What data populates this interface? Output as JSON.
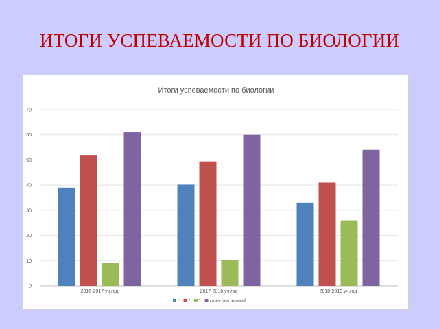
{
  "slide": {
    "title": "ИТОГИ УСПЕВАЕМОСТИ ПО БИОЛОГИИ"
  },
  "chart_data": {
    "type": "bar",
    "title": "Итоги успеваемости по биологии",
    "categories": [
      "2016-2017 уч.год",
      "2017-2018 уч.год",
      "2018-2019 уч.год"
    ],
    "series": [
      {
        "name": "\"",
        "color": "#4f81bd",
        "values": [
          39,
          40.2,
          33
        ]
      },
      {
        "name": "\"",
        "color": "#c0504d",
        "values": [
          52,
          49.4,
          41
        ]
      },
      {
        "name": "\"",
        "color": "#9bbb59",
        "values": [
          9,
          10.3,
          26
        ]
      },
      {
        "name": "качество знаний",
        "color": "#8064a2",
        "values": [
          61,
          60,
          54
        ]
      }
    ],
    "ylim": [
      0,
      70
    ],
    "yticks": [
      0,
      10,
      20,
      30,
      40,
      50,
      60,
      70
    ],
    "grid": true,
    "legend": "bottom",
    "xlabel": "",
    "ylabel": ""
  }
}
